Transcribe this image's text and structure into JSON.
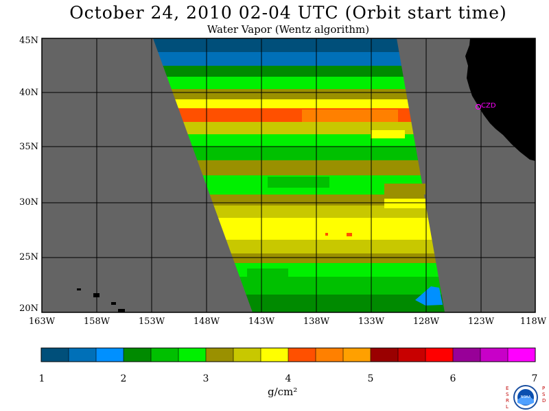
{
  "title": "October 24, 2010  02-04 UTC  (Orbit start time)",
  "subtitle": "Water Vapor (Wentz algorithm)",
  "units": "g/cm²",
  "location_marker": {
    "label": "CZD",
    "lon": -123.0,
    "lat": 38.6
  },
  "lat_labels": [
    "45N",
    "40N",
    "35N",
    "30N",
    "25N",
    "20N"
  ],
  "lon_labels": [
    "163W",
    "158W",
    "153W",
    "148W",
    "143W",
    "138W",
    "133W",
    "128W",
    "123W",
    "118W"
  ],
  "colorbar": {
    "tick_labels": [
      "1",
      "2",
      "3",
      "4",
      "5",
      "6",
      "7"
    ],
    "colors": [
      "#004f7a",
      "#0070b8",
      "#0090ff",
      "#008a00",
      "#00c000",
      "#00f000",
      "#9a9000",
      "#c8c800",
      "#ffff00",
      "#ff5000",
      "#ff8000",
      "#ffa000",
      "#9a0000",
      "#c80000",
      "#ff0000",
      "#980098",
      "#c800c8",
      "#ff00ff"
    ]
  },
  "logo": {
    "left_letters": "ESRL",
    "right_letters": "PSD",
    "center": "NOAA"
  },
  "colors": {
    "land": "#000000",
    "no_data": "#646464"
  }
}
